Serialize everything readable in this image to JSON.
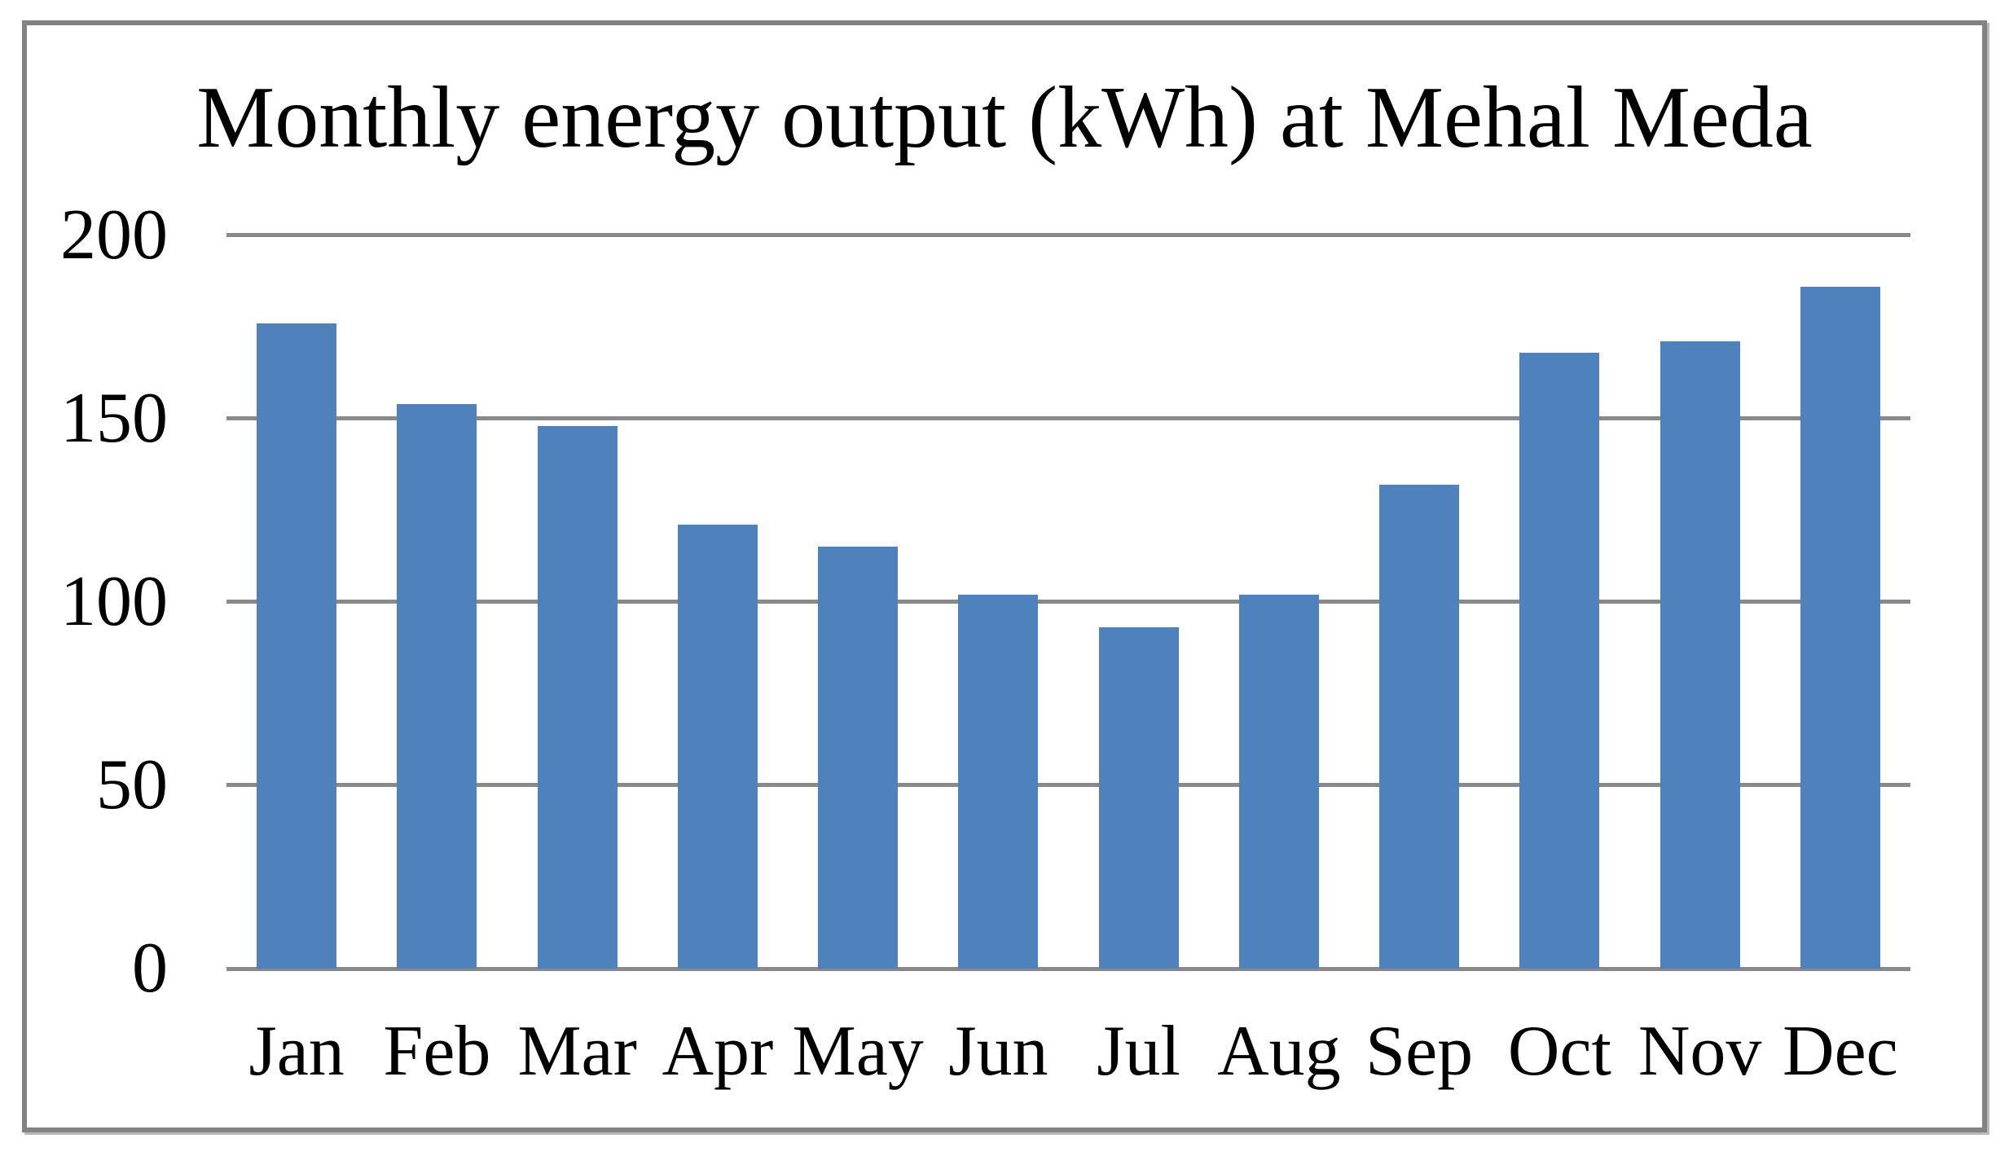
{
  "chart_data": {
    "type": "bar",
    "title": "Monthly energy output (kWh) at Mehal Meda",
    "categories": [
      "Jan",
      "Feb",
      "Mar",
      "Apr",
      "May",
      "Jun",
      "Jul",
      "Aug",
      "Sep",
      "Oct",
      "Nov",
      "Dec"
    ],
    "values": [
      176,
      154,
      148,
      121,
      115,
      102,
      93,
      102,
      132,
      168,
      171,
      186
    ],
    "xlabel": "",
    "ylabel": "",
    "ylim": [
      0,
      200
    ],
    "yticks": [
      0,
      50,
      100,
      150,
      200
    ],
    "ytick_interval": 50,
    "grid": true,
    "gridline_orientation": "horizontal",
    "legend": false,
    "colors": {
      "bar": "#4f81bd",
      "gridline": "#898989",
      "frame_border": "#828282",
      "background": "#ffffff",
      "text": "#000000"
    }
  }
}
